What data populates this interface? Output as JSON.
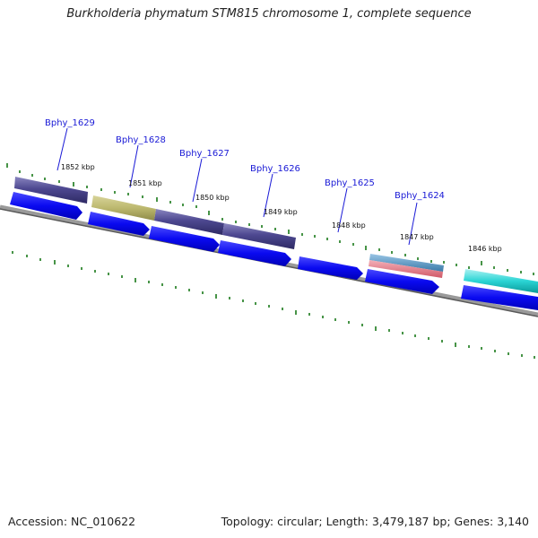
{
  "title": "Burkholderia phymatum STM815 chromosome 1, complete sequence",
  "footer": {
    "accession": "Accession: NC_010622",
    "stats": "Topology: circular; Length: 3,479,187 bp; Genes: 3,140"
  },
  "genes": [
    {
      "name": "Bphy_1629"
    },
    {
      "name": "Bphy_1628"
    },
    {
      "name": "Bphy_1627"
    },
    {
      "name": "Bphy_1626"
    },
    {
      "name": "Bphy_1625"
    },
    {
      "name": "Bphy_1624"
    }
  ],
  "positions": [
    "1852 kbp",
    "1851 kbp",
    "1850 kbp",
    "1849 kbp",
    "1848 kbp",
    "1847 kbp",
    "1846 kbp"
  ],
  "colors": {
    "backbone": "#7a7a7a",
    "cds": "#0a0af0",
    "tick": "#1a7a1a",
    "label": "#1a1ad6"
  }
}
